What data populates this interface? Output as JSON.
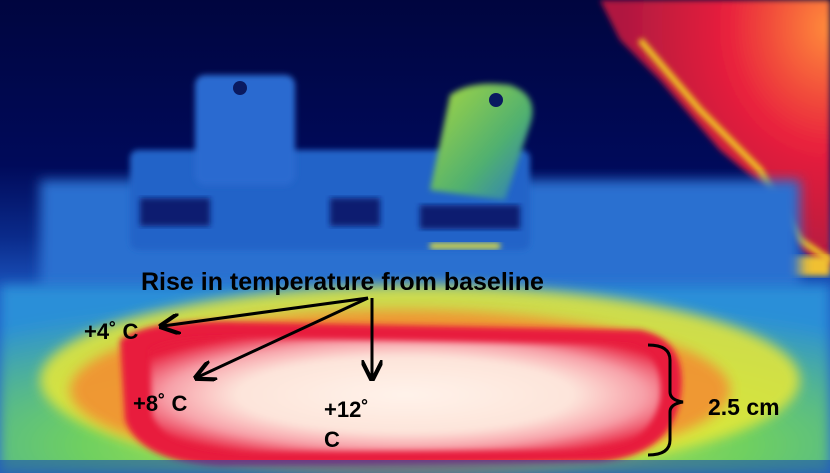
{
  "annotation": {
    "title": "Rise in temperature from baseline",
    "labels": [
      {
        "text": "+4˚ C",
        "value_c": 4
      },
      {
        "text": "+8˚ C",
        "value_c": 8
      },
      {
        "text": "+12˚",
        "value_c": 12
      },
      {
        "text": "C"
      }
    ],
    "dimension": "2.5 cm"
  },
  "palette": {
    "cold": "#00074d",
    "cool": "#1e5fc8",
    "warm": "#f0e020",
    "hot": "#e81c3c",
    "hottest": "#fdeadf"
  }
}
